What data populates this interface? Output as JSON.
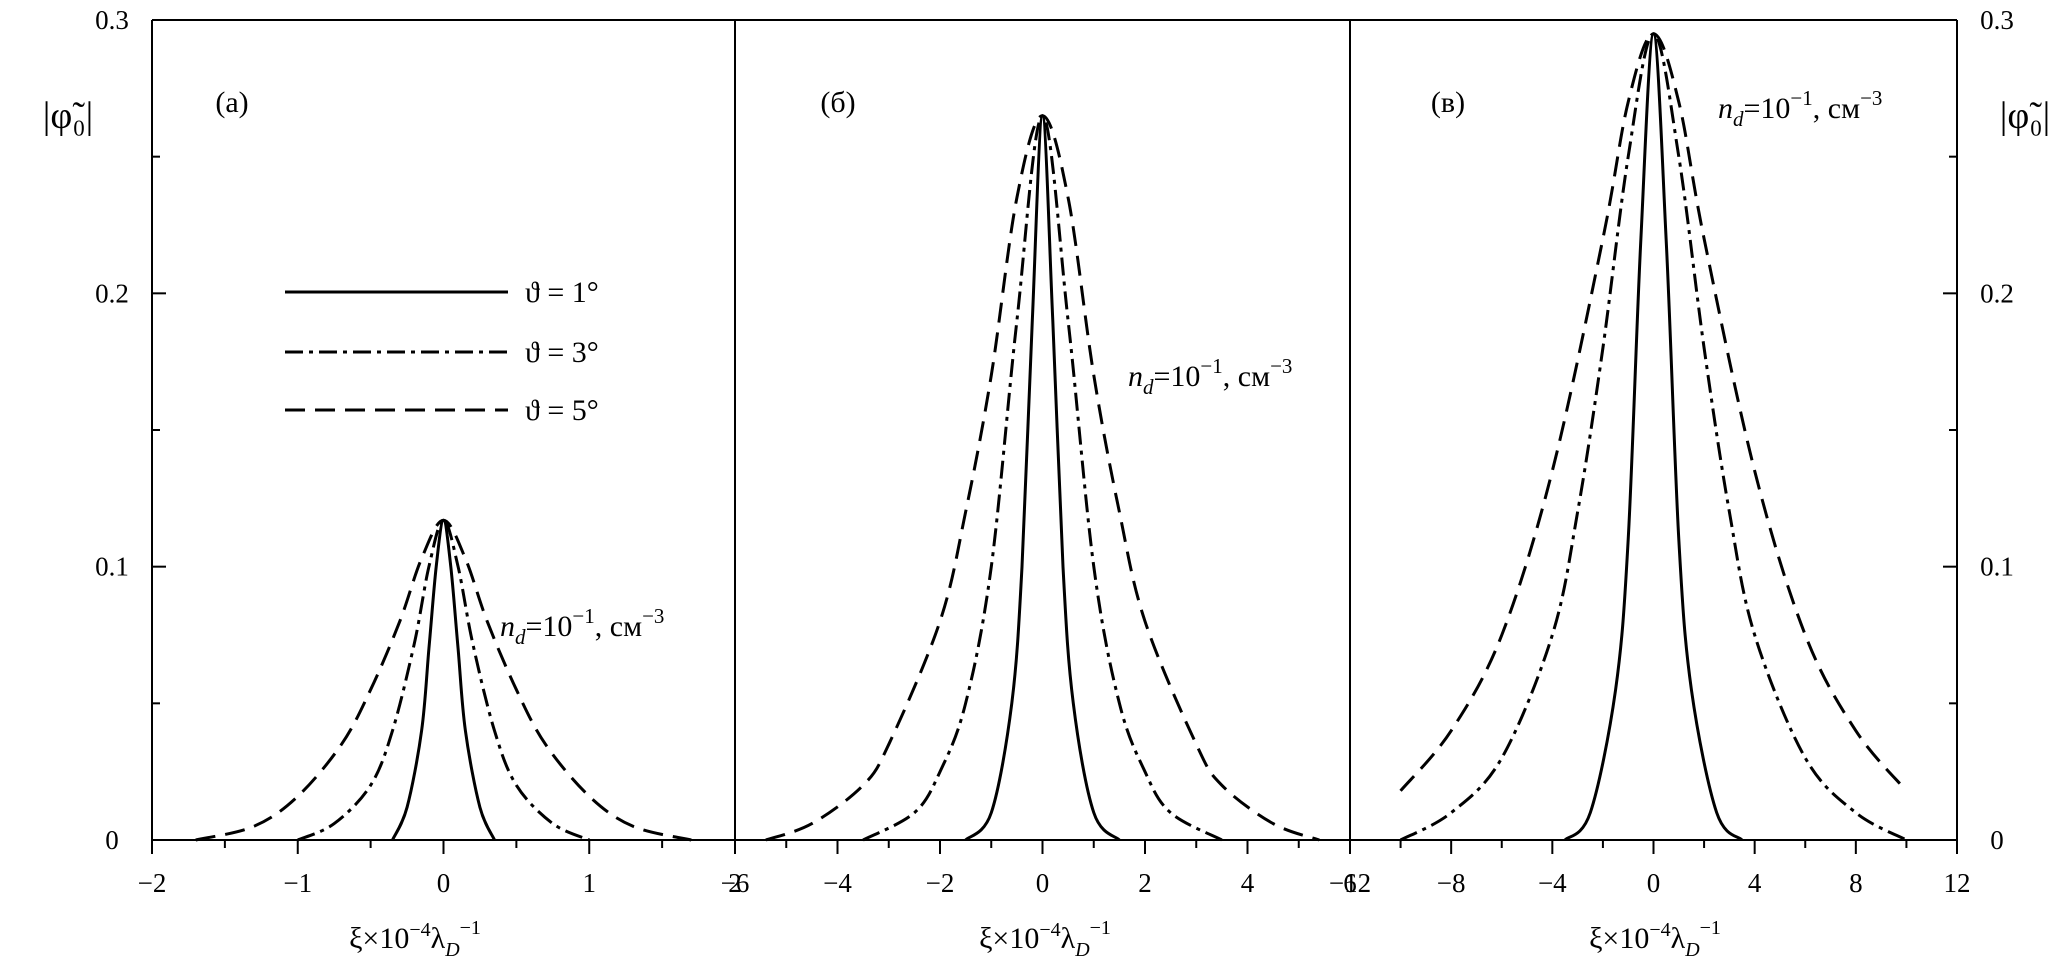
{
  "y_axis_title": "|φ̃₀|",
  "y_ticks": [
    "0",
    "0.1",
    "0.2",
    "0.3"
  ],
  "legend": [
    {
      "label": "ϑ = 1°",
      "style": "solid"
    },
    {
      "label": "ϑ = 3°",
      "style": "dashdot"
    },
    {
      "label": "ϑ = 5°",
      "style": "dashed"
    }
  ],
  "chart_data": [
    {
      "type": "line",
      "panel": "(а)",
      "annotation": {
        "n": "n",
        "sub": "d",
        "mid": "=10",
        "sup1": "−1",
        "unit": ", см",
        "sup2": "−3"
      },
      "xlabel": {
        "main": "ξ×10",
        "sup1": "−4",
        "lam": "λ",
        "sub": "D",
        "sup2": "−1"
      },
      "xlim": [
        -2,
        2
      ],
      "ylim": [
        0,
        0.3
      ],
      "x_ticks": [
        -2,
        -1,
        0,
        1,
        2
      ],
      "x_tick_labels": [
        "−2",
        "−1",
        "0",
        "1",
        "2"
      ],
      "series": [
        {
          "name": "ϑ = 1°",
          "style": "solid",
          "peak": 0.117,
          "x": [
            -0.35,
            -0.25,
            -0.15,
            -0.1,
            -0.05,
            0,
            0.05,
            0.1,
            0.15,
            0.25,
            0.35
          ],
          "y": [
            0.0,
            0.012,
            0.04,
            0.07,
            0.1,
            0.117,
            0.1,
            0.07,
            0.04,
            0.012,
            0.0
          ]
        },
        {
          "name": "ϑ = 3°",
          "style": "dashdot",
          "peak": 0.117,
          "x": [
            -1.0,
            -0.75,
            -0.5,
            -0.35,
            -0.2,
            -0.1,
            0,
            0.1,
            0.2,
            0.35,
            0.5,
            0.75,
            1.0
          ],
          "y": [
            0.0,
            0.006,
            0.02,
            0.04,
            0.072,
            0.1,
            0.117,
            0.1,
            0.072,
            0.04,
            0.02,
            0.006,
            0.0
          ]
        },
        {
          "name": "ϑ = 5°",
          "style": "dashed",
          "peak": 0.117,
          "x": [
            -1.7,
            -1.3,
            -1.0,
            -0.7,
            -0.5,
            -0.3,
            -0.15,
            0,
            0.15,
            0.3,
            0.5,
            0.7,
            1.0,
            1.3,
            1.7
          ],
          "y": [
            0.0,
            0.005,
            0.016,
            0.035,
            0.055,
            0.08,
            0.103,
            0.117,
            0.103,
            0.08,
            0.055,
            0.035,
            0.016,
            0.005,
            0.0
          ]
        }
      ]
    },
    {
      "type": "line",
      "panel": "(б)",
      "annotation": {
        "n": "n",
        "sub": "d",
        "mid": "=10",
        "sup1": "−1",
        "unit": ", см",
        "sup2": "−3"
      },
      "xlabel": {
        "main": "ξ×10",
        "sup1": "−4",
        "lam": "λ",
        "sub": "D",
        "sup2": "−1"
      },
      "xlim": [
        -6,
        6
      ],
      "ylim": [
        0,
        0.3
      ],
      "x_ticks": [
        -6,
        -4,
        -2,
        0,
        2,
        4,
        6
      ],
      "x_tick_labels": [
        "−6",
        "−4",
        "−2",
        "0",
        "2",
        "4",
        "6"
      ],
      "series": [
        {
          "name": "ϑ = 1°",
          "style": "solid",
          "peak": 0.265,
          "x": [
            -1.5,
            -1.0,
            -0.6,
            -0.4,
            -0.2,
            0,
            0.2,
            0.4,
            0.6,
            1.0,
            1.5
          ],
          "y": [
            0.0,
            0.01,
            0.05,
            0.1,
            0.19,
            0.265,
            0.19,
            0.1,
            0.05,
            0.01,
            0.0
          ]
        },
        {
          "name": "ϑ = 3°",
          "style": "dashdot",
          "peak": 0.265,
          "x": [
            -3.5,
            -2.5,
            -2.0,
            -1.5,
            -1.0,
            -0.5,
            0,
            0.5,
            1.0,
            1.5,
            2.0,
            2.5,
            3.5
          ],
          "y": [
            0.0,
            0.01,
            0.025,
            0.05,
            0.1,
            0.19,
            0.265,
            0.19,
            0.1,
            0.05,
            0.025,
            0.01,
            0.0
          ]
        },
        {
          "name": "ϑ = 5°",
          "style": "dashed",
          "peak": 0.265,
          "x": [
            -5.4,
            -4.5,
            -3.5,
            -3.0,
            -2.0,
            -1.5,
            -1.0,
            -0.5,
            0,
            0.5,
            1.0,
            1.5,
            2.0,
            3.0,
            3.5,
            4.5,
            5.4
          ],
          "y": [
            0.0,
            0.006,
            0.02,
            0.035,
            0.08,
            0.12,
            0.17,
            0.235,
            0.265,
            0.235,
            0.17,
            0.12,
            0.08,
            0.035,
            0.02,
            0.006,
            0.0
          ]
        }
      ]
    },
    {
      "type": "line",
      "panel": "(в)",
      "annotation": {
        "n": "n",
        "sub": "d",
        "mid": "=10",
        "sup1": "−1",
        "unit": ", см",
        "sup2": "−3"
      },
      "xlabel": {
        "main": "ξ×10",
        "sup1": "−4",
        "lam": "λ",
        "sub": "D",
        "sup2": "−1"
      },
      "xlim": [
        -12,
        12
      ],
      "ylim": [
        0,
        0.3
      ],
      "x_ticks": [
        -12,
        -8,
        -4,
        0,
        4,
        8,
        12
      ],
      "x_tick_labels": [
        "−12",
        "−8",
        "−4",
        "0",
        "4",
        "8",
        "12"
      ],
      "series": [
        {
          "name": "ϑ = 1°",
          "style": "solid",
          "peak": 0.295,
          "x": [
            -3.5,
            -2.5,
            -1.5,
            -1.0,
            -0.5,
            0,
            0.5,
            1.0,
            1.5,
            2.5,
            3.5
          ],
          "y": [
            0.0,
            0.01,
            0.055,
            0.11,
            0.22,
            0.295,
            0.22,
            0.11,
            0.055,
            0.01,
            0.0
          ]
        },
        {
          "name": "ϑ = 3°",
          "style": "dashdot",
          "peak": 0.295,
          "x": [
            -10.0,
            -8.0,
            -6.0,
            -4.0,
            -3.0,
            -2.0,
            -1.0,
            0,
            1.0,
            2.0,
            3.0,
            4.0,
            6.0,
            8.0,
            10.0
          ],
          "y": [
            0.0,
            0.01,
            0.03,
            0.075,
            0.12,
            0.18,
            0.25,
            0.295,
            0.25,
            0.18,
            0.12,
            0.075,
            0.03,
            0.01,
            0.0
          ]
        },
        {
          "name": "ϑ = 5°",
          "style": "dashed",
          "peak": 0.295,
          "x": [
            -10.0,
            -8.0,
            -6.0,
            -4.0,
            -2.0,
            -1.0,
            0,
            1.0,
            2.0,
            4.0,
            6.0,
            8.0,
            10.0
          ],
          "y": [
            0.018,
            0.04,
            0.075,
            0.135,
            0.22,
            0.27,
            0.295,
            0.27,
            0.22,
            0.135,
            0.075,
            0.04,
            0.018
          ]
        }
      ]
    }
  ]
}
